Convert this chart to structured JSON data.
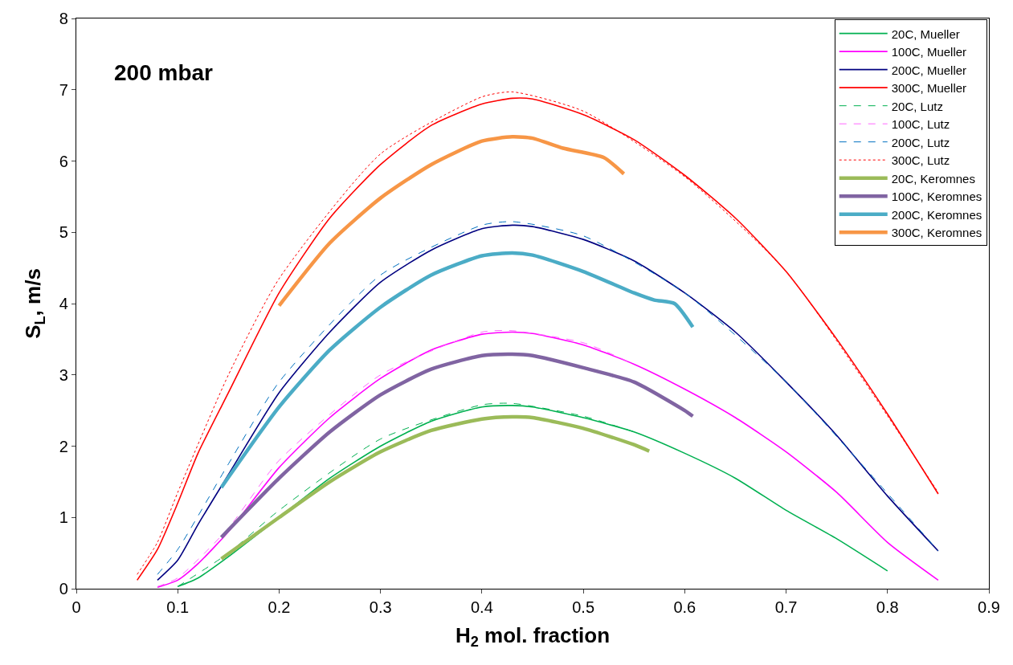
{
  "chart_data": {
    "type": "line",
    "xlabel": "H$_{2}$ mol. fraction",
    "ylabel": "S$_{L}$, m/s",
    "annotations": [
      "200 mbar"
    ],
    "xlim": [
      0,
      0.9
    ],
    "xticks": [
      0,
      0.1,
      0.2,
      0.3,
      0.4,
      0.5,
      0.6,
      0.7,
      0.8,
      0.9
    ],
    "ylim": [
      0,
      8
    ],
    "yticks": [
      0,
      1,
      2,
      3,
      4,
      5,
      6,
      7,
      8
    ],
    "legend": "top right",
    "marker": "none",
    "series": [
      {
        "name": "20C, Mueller",
        "color": "#00b050",
        "line_style": "solid",
        "x": [
          0.1,
          0.12,
          0.15,
          0.2,
          0.25,
          0.3,
          0.35,
          0.4,
          0.43,
          0.45,
          0.5,
          0.55,
          0.6,
          0.65,
          0.7,
          0.75,
          0.8
        ],
        "values": [
          0.03,
          0.15,
          0.45,
          1.0,
          1.55,
          2.0,
          2.35,
          2.55,
          2.57,
          2.55,
          2.4,
          2.2,
          1.9,
          1.55,
          1.1,
          0.7,
          0.25
        ]
      },
      {
        "name": "100C, Mueller",
        "color": "#ff00ff",
        "line_style": "solid",
        "x": [
          0.08,
          0.1,
          0.12,
          0.15,
          0.2,
          0.25,
          0.3,
          0.35,
          0.4,
          0.43,
          0.45,
          0.5,
          0.55,
          0.6,
          0.65,
          0.7,
          0.75,
          0.8,
          0.85
        ],
        "values": [
          0.02,
          0.12,
          0.35,
          0.8,
          1.7,
          2.4,
          2.95,
          3.35,
          3.57,
          3.6,
          3.58,
          3.42,
          3.15,
          2.8,
          2.4,
          1.92,
          1.35,
          0.65,
          0.12
        ]
      },
      {
        "name": "200C, Mueller",
        "color": "#000080",
        "line_style": "solid",
        "x": [
          0.08,
          0.1,
          0.12,
          0.15,
          0.2,
          0.25,
          0.3,
          0.35,
          0.4,
          0.43,
          0.45,
          0.5,
          0.55,
          0.6,
          0.65,
          0.7,
          0.75,
          0.8,
          0.85
        ],
        "values": [
          0.12,
          0.4,
          0.9,
          1.6,
          2.75,
          3.6,
          4.3,
          4.75,
          5.05,
          5.1,
          5.08,
          4.9,
          4.6,
          4.15,
          3.6,
          2.9,
          2.15,
          1.3,
          0.53
        ]
      },
      {
        "name": "300C, Mueller",
        "color": "#ff0000",
        "line_style": "solid",
        "x": [
          0.06,
          0.08,
          0.1,
          0.12,
          0.15,
          0.2,
          0.25,
          0.3,
          0.35,
          0.4,
          0.43,
          0.45,
          0.5,
          0.55,
          0.6,
          0.65,
          0.7,
          0.75,
          0.8,
          0.85
        ],
        "values": [
          0.12,
          0.55,
          1.2,
          1.9,
          2.75,
          4.15,
          5.2,
          5.95,
          6.5,
          6.8,
          6.88,
          6.87,
          6.65,
          6.3,
          5.8,
          5.2,
          4.45,
          3.5,
          2.45,
          1.33
        ]
      },
      {
        "name": "20C, Lutz",
        "color": "#00b050",
        "line_style": "dashed",
        "x": [
          0.1,
          0.15,
          0.2,
          0.3,
          0.4,
          0.43,
          0.5,
          0.55
        ],
        "values": [
          0.03,
          0.5,
          1.1,
          2.1,
          2.58,
          2.6,
          2.42,
          2.2
        ]
      },
      {
        "name": "100C, Lutz",
        "color": "#ff66ff",
        "line_style": "dashed",
        "x": [
          0.08,
          0.1,
          0.15,
          0.2,
          0.3,
          0.4,
          0.43,
          0.5,
          0.55
        ],
        "values": [
          0.03,
          0.15,
          0.85,
          1.8,
          3.0,
          3.6,
          3.62,
          3.45,
          3.15
        ]
      },
      {
        "name": "200C, Lutz",
        "color": "#0070c0",
        "line_style": "dashed",
        "x": [
          0.08,
          0.1,
          0.15,
          0.2,
          0.3,
          0.4,
          0.43,
          0.5,
          0.6,
          0.7,
          0.85
        ],
        "values": [
          0.2,
          0.55,
          1.75,
          2.9,
          4.4,
          5.1,
          5.15,
          4.95,
          4.15,
          2.9,
          0.53
        ]
      },
      {
        "name": "300C, Lutz",
        "color": "#ff0000",
        "line_style": "dotted",
        "x": [
          0.06,
          0.08,
          0.1,
          0.15,
          0.2,
          0.3,
          0.4,
          0.43,
          0.5,
          0.6,
          0.7,
          0.85
        ],
        "values": [
          0.2,
          0.65,
          1.35,
          3.0,
          4.35,
          6.1,
          6.9,
          6.97,
          6.7,
          5.78,
          4.45,
          1.35
        ]
      },
      {
        "name": "20C, Keromnes",
        "color": "#9bbb59",
        "line_style": "solid",
        "x": [
          0.143,
          0.2,
          0.25,
          0.3,
          0.35,
          0.4,
          0.43,
          0.45,
          0.5,
          0.55,
          0.565
        ],
        "values": [
          0.42,
          1.0,
          1.5,
          1.92,
          2.22,
          2.38,
          2.41,
          2.4,
          2.25,
          2.02,
          1.93
        ]
      },
      {
        "name": "100C, Keromnes",
        "color": "#8064a2",
        "line_style": "solid",
        "x": [
          0.143,
          0.2,
          0.25,
          0.3,
          0.35,
          0.4,
          0.43,
          0.45,
          0.5,
          0.55,
          0.6,
          0.608
        ],
        "values": [
          0.72,
          1.55,
          2.2,
          2.72,
          3.08,
          3.27,
          3.29,
          3.27,
          3.1,
          2.9,
          2.5,
          2.42
        ]
      },
      {
        "name": "200C, Keromnes",
        "color": "#4bacc6",
        "line_style": "solid",
        "x": [
          0.143,
          0.2,
          0.25,
          0.3,
          0.35,
          0.4,
          0.43,
          0.45,
          0.5,
          0.55,
          0.57,
          0.59,
          0.608
        ],
        "values": [
          1.42,
          2.55,
          3.35,
          3.95,
          4.4,
          4.67,
          4.71,
          4.68,
          4.45,
          4.15,
          4.05,
          4.0,
          3.67
        ]
      },
      {
        "name": "300C, Keromnes",
        "color": "#f79646",
        "line_style": "solid",
        "x": [
          0.2,
          0.25,
          0.3,
          0.35,
          0.4,
          0.43,
          0.45,
          0.48,
          0.52,
          0.54
        ],
        "values": [
          3.97,
          4.85,
          5.48,
          5.95,
          6.28,
          6.34,
          6.32,
          6.18,
          6.05,
          5.82
        ]
      }
    ]
  }
}
